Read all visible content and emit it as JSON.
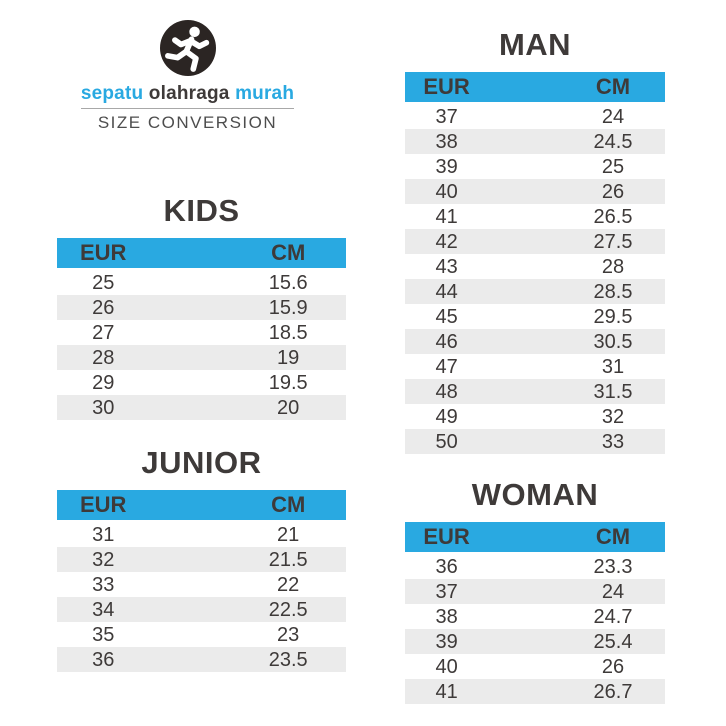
{
  "brand": {
    "word1": "sepatu",
    "word2": "olahraga",
    "word3": "murah",
    "tagline": "SIZE CONVERSION",
    "logo_icon": "runner-icon"
  },
  "colors": {
    "accent": "#29a9e1",
    "text_dark": "#3e3a39",
    "row_alt": "#ebebeb",
    "logo_bg": "#2b2523"
  },
  "chart_data": [
    {
      "type": "table",
      "title": "KIDS",
      "columns": [
        "EUR",
        "CM"
      ],
      "rows": [
        [
          "25",
          "15.6"
        ],
        [
          "26",
          "15.9"
        ],
        [
          "27",
          "18.5"
        ],
        [
          "28",
          "19"
        ],
        [
          "29",
          "19.5"
        ],
        [
          "30",
          "20"
        ]
      ]
    },
    {
      "type": "table",
      "title": "JUNIOR",
      "columns": [
        "EUR",
        "CM"
      ],
      "rows": [
        [
          "31",
          "21"
        ],
        [
          "32",
          "21.5"
        ],
        [
          "33",
          "22"
        ],
        [
          "34",
          "22.5"
        ],
        [
          "35",
          "23"
        ],
        [
          "36",
          "23.5"
        ]
      ]
    },
    {
      "type": "table",
      "title": "MAN",
      "columns": [
        "EUR",
        "CM"
      ],
      "rows": [
        [
          "37",
          "24"
        ],
        [
          "38",
          "24.5"
        ],
        [
          "39",
          "25"
        ],
        [
          "40",
          "26"
        ],
        [
          "41",
          "26.5"
        ],
        [
          "42",
          "27.5"
        ],
        [
          "43",
          "28"
        ],
        [
          "44",
          "28.5"
        ],
        [
          "45",
          "29.5"
        ],
        [
          "46",
          "30.5"
        ],
        [
          "47",
          "31"
        ],
        [
          "48",
          "31.5"
        ],
        [
          "49",
          "32"
        ],
        [
          "50",
          "33"
        ]
      ]
    },
    {
      "type": "table",
      "title": "WOMAN",
      "columns": [
        "EUR",
        "CM"
      ],
      "rows": [
        [
          "36",
          "23.3"
        ],
        [
          "37",
          "24"
        ],
        [
          "38",
          "24.7"
        ],
        [
          "39",
          "25.4"
        ],
        [
          "40",
          "26"
        ],
        [
          "41",
          "26.7"
        ]
      ]
    }
  ]
}
